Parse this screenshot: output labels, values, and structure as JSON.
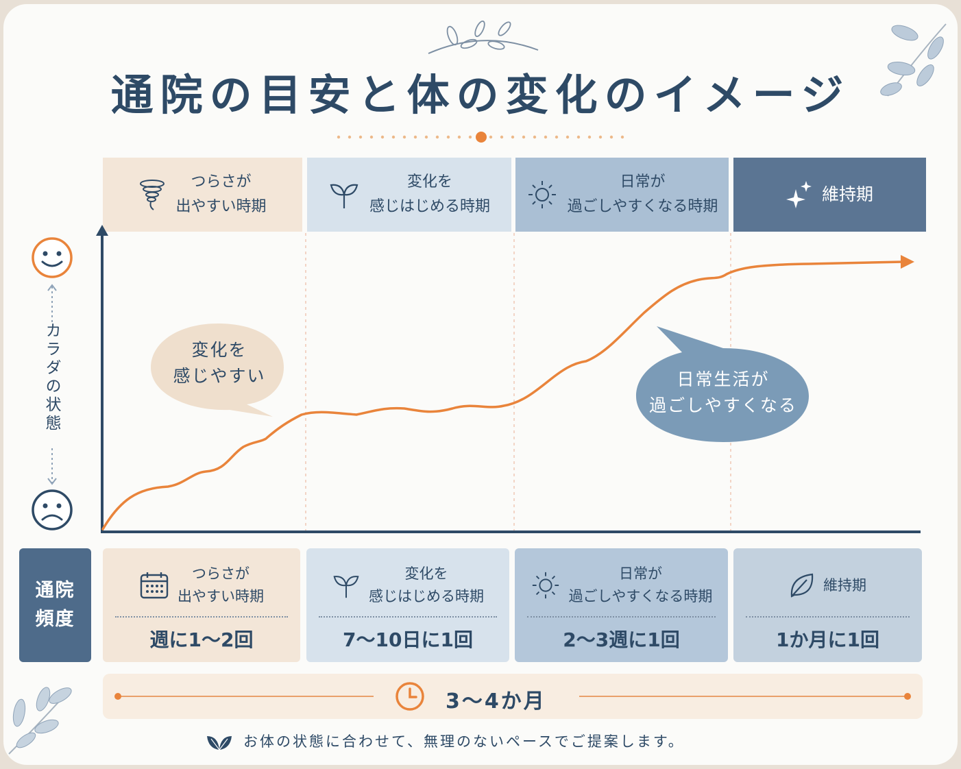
{
  "title": "通院の目安と体の変化のイメージ",
  "phases": [
    {
      "label": "つらさが\n出やすい時期",
      "icon": "tornado-icon",
      "color": "#f3e6d8"
    },
    {
      "label": "変化を\n感じはじめる時期",
      "icon": "sprout-icon",
      "color": "#d7e2ec"
    },
    {
      "label": "日常が\n過ごしやすくなる時期",
      "icon": "sun-icon",
      "color": "#aabfd4"
    },
    {
      "label": "維持期",
      "icon": "sparkle-icon",
      "color": "#5b7593"
    }
  ],
  "y_axis_label": "カラダの状態",
  "y_axis_top_icon": "smile-face-icon",
  "y_axis_bottom_icon": "sad-face-icon",
  "bubbles": {
    "left": "変化を\n感じやすい",
    "right": "日常生活が\n過ごしやすくなる"
  },
  "frequency": {
    "label": "通院\n頻度",
    "cells": [
      {
        "phase": "つらさが\n出やすい時期",
        "icon": "calendar-icon",
        "value": "週に1～2回"
      },
      {
        "phase": "変化を\n感じはじめる時期",
        "icon": "sprout-icon",
        "value": "7～10日に1回"
      },
      {
        "phase": "日常が\n過ごしやすくなる時期",
        "icon": "sun-icon",
        "value": "2～3週に1回"
      },
      {
        "phase": "維持期",
        "icon": "leaf-icon",
        "value": "1か月に1回"
      }
    ]
  },
  "duration": {
    "icon": "clock-icon",
    "text": "3～4か月"
  },
  "footer": {
    "icon": "leaves-icon",
    "text": "お体の状態に合わせて、無理のないペースでご提案します。"
  },
  "colors": {
    "accent": "#e9843b",
    "navy": "#2e4a66",
    "dark_phase": "#5b7593"
  }
}
